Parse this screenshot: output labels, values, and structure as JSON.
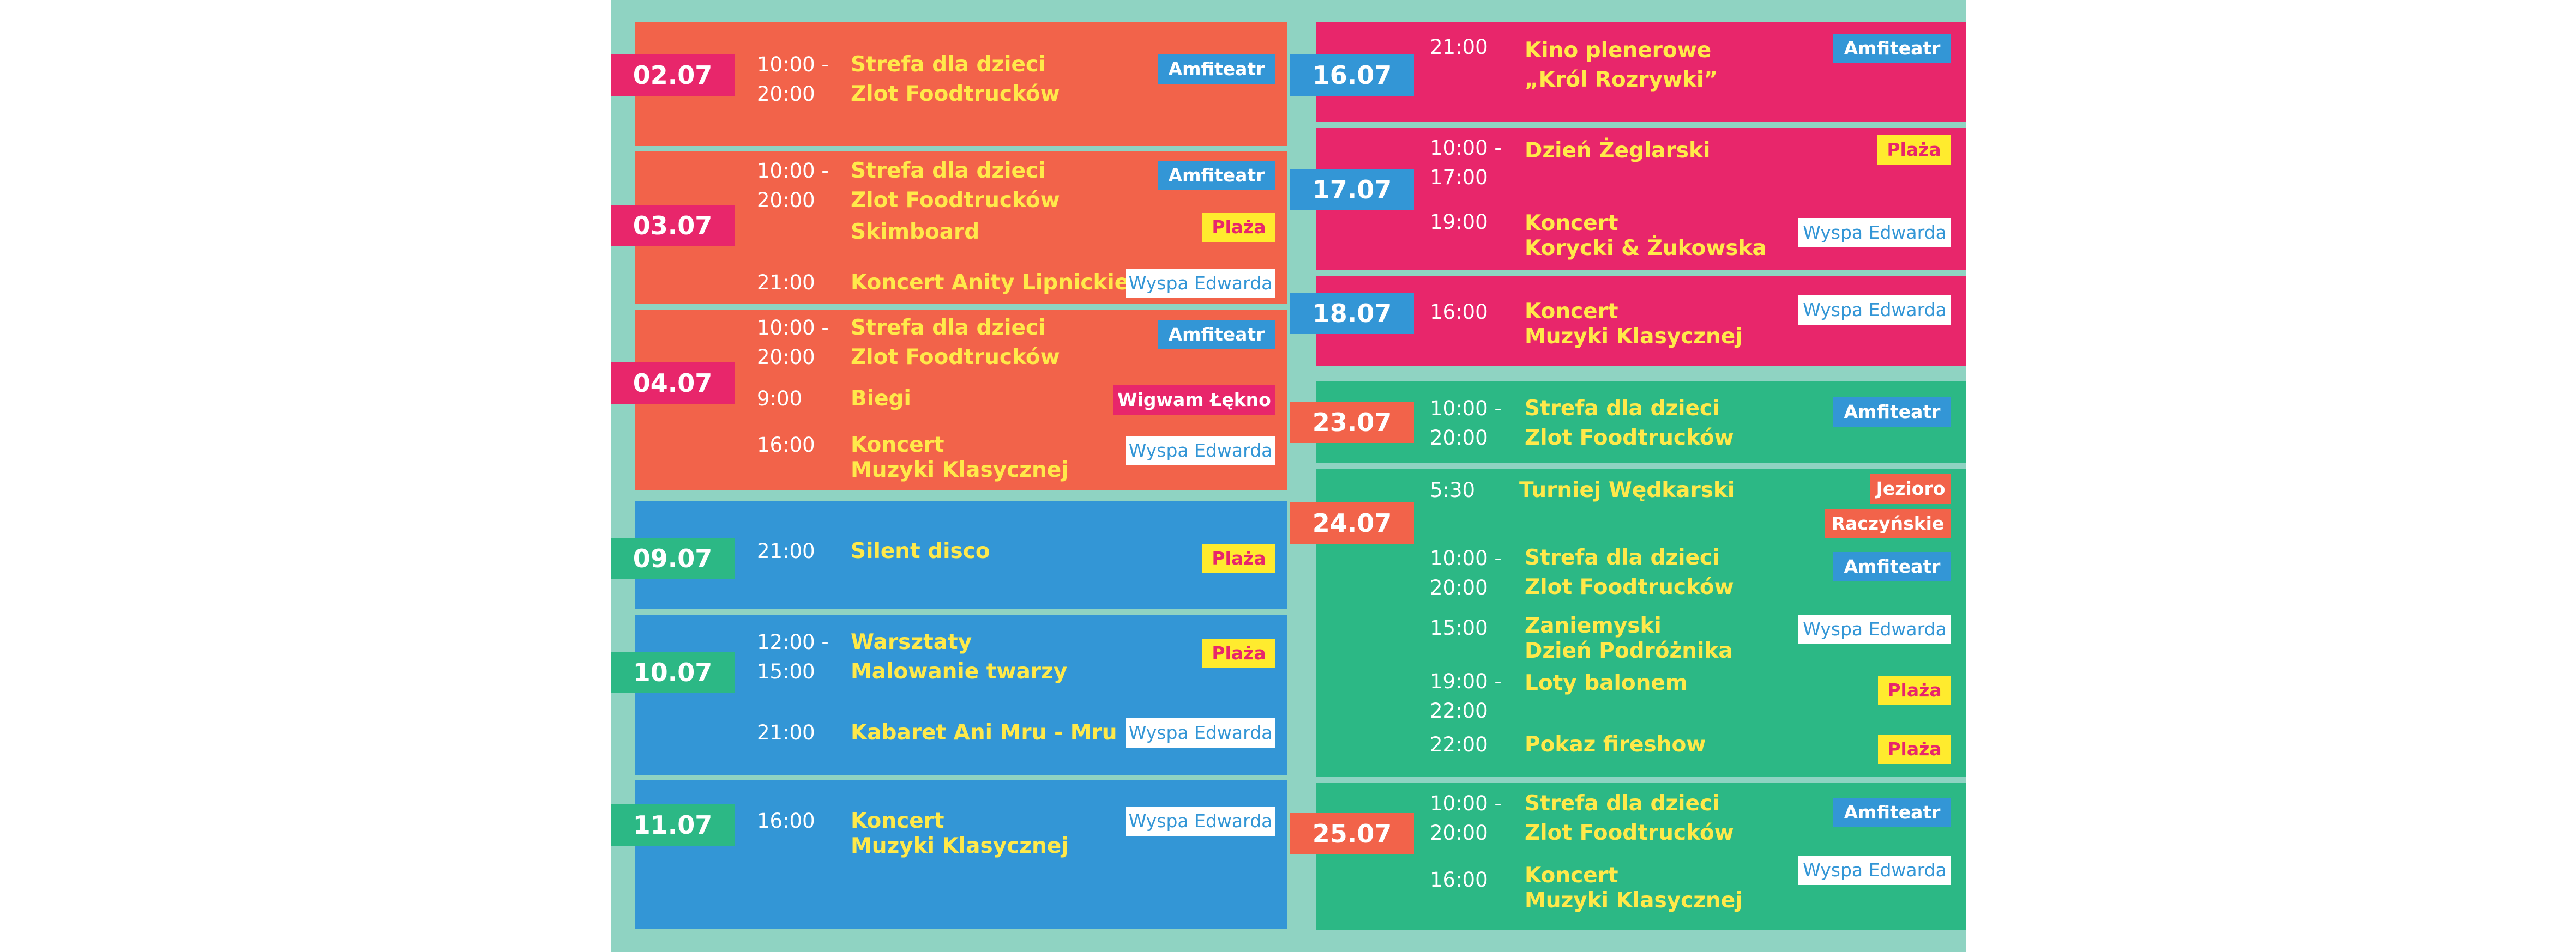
{
  "colors": {
    "coral": "#f2634a",
    "pink": "#e8266b",
    "blue": "#3396d6",
    "green": "#2cb885",
    "mint": "#8fd3c2",
    "yellow": "#ffe94a"
  },
  "left": [
    {
      "date": "02.07",
      "times": [
        "10:00 -",
        "20:00"
      ],
      "events": [
        "Strefa dla dzieci",
        "Zlot Foodtrucków"
      ],
      "tags": [
        "Amfiteatr"
      ]
    },
    {
      "date": "03.07",
      "times": [
        "10:00 -",
        "20:00",
        "21:00"
      ],
      "events": [
        "Strefa dla dzieci",
        "Zlot Foodtrucków",
        "Skimboard",
        "Koncert Anity Lipnickiej"
      ],
      "tags": [
        "Amfiteatr",
        "Plaża",
        "Wyspa Edwarda"
      ]
    },
    {
      "date": "04.07",
      "times": [
        "10:00 -",
        "20:00",
        "9:00",
        "16:00"
      ],
      "events": [
        "Strefa dla dzieci",
        "Zlot Foodtrucków",
        "Biegi",
        "Koncert",
        "Muzyki Klasycznej"
      ],
      "tags": [
        "Amfiteatr",
        "Wigwam Łękno",
        "Wyspa Edwarda"
      ]
    },
    {
      "date": "09.07",
      "times": [
        "21:00"
      ],
      "events": [
        "Silent disco"
      ],
      "tags": [
        "Plaża"
      ]
    },
    {
      "date": "10.07",
      "times": [
        "12:00 -",
        "15:00",
        "21:00"
      ],
      "events": [
        "Warsztaty",
        "Malowanie twarzy",
        "Kabaret Ani Mru - Mru"
      ],
      "tags": [
        "Plaża",
        "Wyspa Edwarda"
      ]
    },
    {
      "date": "11.07",
      "times": [
        "16:00"
      ],
      "events": [
        "Koncert",
        "Muzyki Klasycznej"
      ],
      "tags": [
        "Wyspa Edwarda"
      ]
    }
  ],
  "right": [
    {
      "date": "16.07",
      "times": [
        "21:00"
      ],
      "events": [
        "Kino plenerowe",
        "„Król Rozrywki”"
      ],
      "tags": [
        "Amfiteatr"
      ]
    },
    {
      "date": "17.07",
      "times": [
        "10:00 -",
        "17:00",
        "19:00"
      ],
      "events": [
        "Dzień Żeglarski",
        "Koncert",
        "Korycki & Żukowska"
      ],
      "tags": [
        "Plaża",
        "Wyspa Edwarda"
      ]
    },
    {
      "date": "18.07",
      "times": [
        "16:00"
      ],
      "events": [
        "Koncert",
        "Muzyki Klasycznej"
      ],
      "tags": [
        "Wyspa Edwarda"
      ]
    },
    {
      "date": "23.07",
      "times": [
        "10:00 -",
        "20:00"
      ],
      "events": [
        "Strefa dla dzieci",
        "Zlot Foodtrucków"
      ],
      "tags": [
        "Amfiteatr"
      ]
    },
    {
      "date": "24.07",
      "times": [
        "5:30",
        "10:00 -",
        "20:00",
        "15:00",
        "19:00 -",
        "22:00",
        "22:00"
      ],
      "events": [
        "Turniej Wędkarski",
        "Strefa dla dzieci",
        "Zlot Foodtrucków",
        "Zaniemyski",
        "Dzień Podróżnika",
        "Loty balonem",
        "Pokaz fireshow"
      ],
      "tags": [
        "Jezioro",
        "Raczyńskie",
        "Amfiteatr",
        "Wyspa Edwarda",
        "Plaża",
        "Plaża"
      ]
    },
    {
      "date": "25.07",
      "times": [
        "10:00 -",
        "20:00",
        "16:00"
      ],
      "events": [
        "Strefa dla dzieci",
        "Zlot Foodtrucków",
        "Koncert",
        "Muzyki Klasycznej"
      ],
      "tags": [
        "Amfiteatr",
        "Wyspa Edwarda"
      ]
    }
  ]
}
